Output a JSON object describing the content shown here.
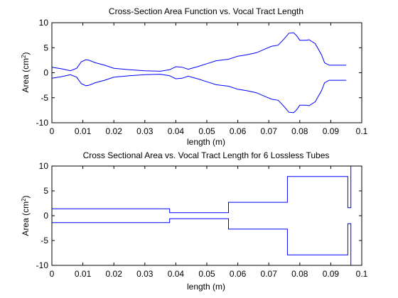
{
  "colors": {
    "line": "#0000ff",
    "axes": "#000000",
    "background": "#ffffff"
  },
  "chart_data": [
    {
      "type": "line",
      "title": "Cross-Section Area Function vs. Vocal Tract Length",
      "xlabel": "length (m)",
      "ylabel_base": "Area (cm",
      "ylabel_sup": "2",
      "ylabel_tail": ")",
      "xlim": [
        0,
        0.1
      ],
      "ylim": [
        -10,
        10
      ],
      "grid": false,
      "xticks": [
        0,
        0.01,
        0.02,
        0.03,
        0.04,
        0.05,
        0.06,
        0.07,
        0.08,
        0.09,
        0.1
      ],
      "xtick_labels": [
        "0",
        "0.01",
        "0.02",
        "0.03",
        "0.04",
        "0.05",
        "0.06",
        "0.07",
        "0.08",
        "0.09",
        "0.1"
      ],
      "yticks": [
        -10,
        -5,
        0,
        5,
        10
      ],
      "ytick_labels": [
        "-10",
        "-5",
        "0",
        "5",
        "10"
      ],
      "mirrored": true,
      "series": [
        {
          "x": [
            0,
            0.003,
            0.006,
            0.008,
            0.0095,
            0.011,
            0.012,
            0.014,
            0.017,
            0.02,
            0.025,
            0.03,
            0.035,
            0.038,
            0.04,
            0.042,
            0.044,
            0.047,
            0.05,
            0.053,
            0.057,
            0.06,
            0.063,
            0.066,
            0.069,
            0.071,
            0.073,
            0.075,
            0.0765,
            0.078,
            0.079,
            0.08,
            0.082,
            0.083,
            0.085,
            0.087,
            0.088,
            0.0895,
            0.092,
            0.095
          ],
          "y": [
            1.1,
            0.8,
            0.4,
            0.9,
            2.2,
            2.6,
            2.5,
            2.0,
            1.5,
            0.9,
            0.6,
            0.4,
            0.3,
            0.6,
            1.2,
            1.1,
            0.7,
            1.2,
            1.8,
            2.4,
            2.7,
            3.3,
            3.6,
            4.0,
            4.8,
            5.3,
            5.5,
            6.8,
            7.9,
            8.0,
            7.4,
            6.5,
            6.5,
            6.6,
            5.8,
            3.6,
            2.0,
            1.5,
            1.5,
            1.5
          ]
        }
      ]
    },
    {
      "type": "line",
      "title": "Cross Sectional Area vs. Vocal Tract Length for 6 Lossless Tubes",
      "xlabel": "length (m)",
      "ylabel_base": "Area (cm",
      "ylabel_sup": "2",
      "ylabel_tail": ")",
      "xlim": [
        0,
        0.1
      ],
      "ylim": [
        -10,
        10
      ],
      "grid": false,
      "xticks": [
        0,
        0.01,
        0.02,
        0.03,
        0.04,
        0.05,
        0.06,
        0.07,
        0.08,
        0.09,
        0.1
      ],
      "xtick_labels": [
        "0",
        "0.01",
        "0.02",
        "0.03",
        "0.04",
        "0.05",
        "0.06",
        "0.07",
        "0.08",
        "0.09",
        "0.1"
      ],
      "yticks": [
        -10,
        -5,
        0,
        5,
        10
      ],
      "ytick_labels": [
        "-10",
        "-5",
        "0",
        "5",
        "10"
      ],
      "mirrored": true,
      "tubes": [
        {
          "start": 0,
          "end": 0.038,
          "area": 1.4
        },
        {
          "start": 0.038,
          "end": 0.057,
          "area": 0.6
        },
        {
          "start": 0.057,
          "end": 0.076,
          "area": 2.7
        },
        {
          "start": 0.076,
          "end": 0.0955,
          "area": 7.9
        },
        {
          "start": 0.0955,
          "end": 0.0965,
          "area": 1.6
        },
        {
          "start": 0.0965,
          "end": 0.1,
          "area": 10
        }
      ]
    }
  ]
}
